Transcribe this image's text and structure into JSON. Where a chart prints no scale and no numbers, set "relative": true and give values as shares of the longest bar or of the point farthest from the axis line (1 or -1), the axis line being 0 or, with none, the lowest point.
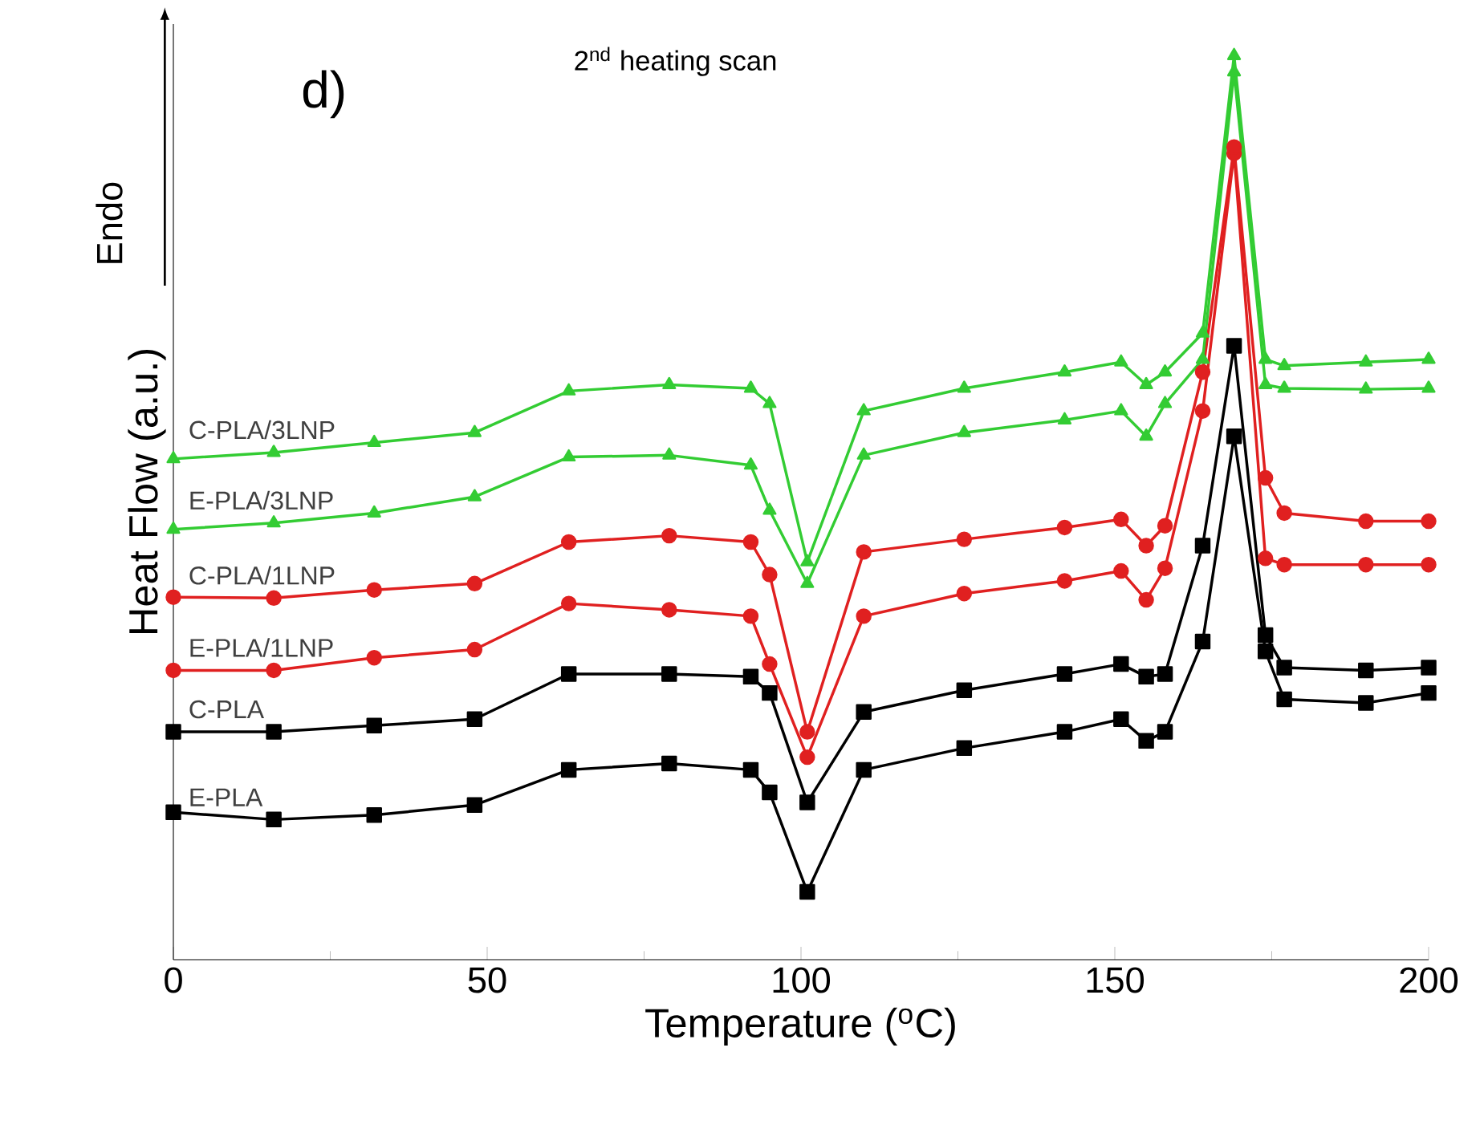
{
  "chart_data": {
    "type": "line",
    "title": "2$^{nd}$ heating scan",
    "xlabel": "Temperature ($^{o}$C)",
    "ylabel": "Heat Flow (a.u.)",
    "annotations": [
      "d)",
      "Endo"
    ],
    "relative": true,
    "xlim": [
      0,
      200
    ],
    "xticks": [
      0,
      50,
      100,
      150,
      200
    ],
    "legend": false,
    "grid": false,
    "line_style": "solid",
    "x": [
      0,
      16,
      32,
      48,
      63,
      79,
      92,
      95,
      101,
      110,
      126,
      142,
      151,
      155,
      158,
      164,
      169,
      174,
      177,
      190,
      200
    ],
    "series": [
      {
        "name": "E-PLA",
        "color": "#000000",
        "marker": "square",
        "values": [
          0.163,
          0.155,
          0.16,
          0.171,
          0.21,
          0.217,
          0.21,
          0.185,
          0.075,
          0.21,
          0.234,
          0.252,
          0.266,
          0.242,
          0.252,
          0.352,
          0.579,
          0.341,
          0.288,
          0.284,
          0.295
        ]
      },
      {
        "name": "C-PLA",
        "color": "#000000",
        "marker": "square",
        "values": [
          0.252,
          0.252,
          0.259,
          0.266,
          0.316,
          0.316,
          0.313,
          0.295,
          0.174,
          0.274,
          0.298,
          0.316,
          0.327,
          0.313,
          0.316,
          0.458,
          0.679,
          0.359,
          0.323,
          0.32,
          0.323
        ]
      },
      {
        "name": "E-PLA/1LNP",
        "color": "#e02020",
        "marker": "circle",
        "values": [
          0.32,
          0.32,
          0.334,
          0.343,
          0.394,
          0.387,
          0.38,
          0.327,
          0.224,
          0.38,
          0.405,
          0.419,
          0.43,
          0.398,
          0.433,
          0.607,
          0.892,
          0.444,
          0.437,
          0.437,
          0.437
        ]
      },
      {
        "name": "C-PLA/1LNP",
        "color": "#e02020",
        "marker": "circle",
        "values": [
          0.401,
          0.4,
          0.409,
          0.416,
          0.462,
          0.469,
          0.462,
          0.426,
          0.252,
          0.451,
          0.465,
          0.478,
          0.487,
          0.458,
          0.48,
          0.65,
          0.899,
          0.533,
          0.494,
          0.485,
          0.485
        ]
      },
      {
        "name": "E-PLA/3LNP",
        "color": "#33cc33",
        "marker": "triangle",
        "values": [
          0.476,
          0.483,
          0.494,
          0.512,
          0.556,
          0.558,
          0.547,
          0.497,
          0.416,
          0.558,
          0.583,
          0.597,
          0.607,
          0.579,
          0.615,
          0.664,
          0.982,
          0.636,
          0.632,
          0.631,
          0.632
        ]
      },
      {
        "name": "C-PLA/3LNP",
        "color": "#33cc33",
        "marker": "triangle",
        "values": [
          0.554,
          0.561,
          0.572,
          0.583,
          0.629,
          0.636,
          0.632,
          0.615,
          0.44,
          0.607,
          0.632,
          0.65,
          0.661,
          0.636,
          0.65,
          0.693,
          1,
          0.664,
          0.657,
          0.661,
          0.664
        ]
      }
    ]
  }
}
